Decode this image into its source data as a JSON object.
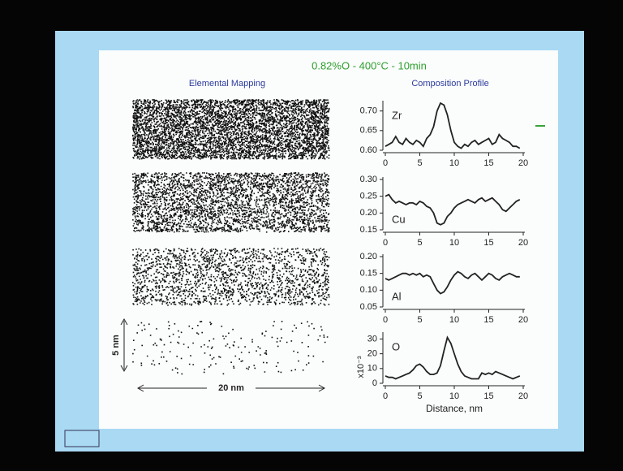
{
  "slide": {
    "title": "0.82%O - 400°C - 10min",
    "left_heading": "Elemental Mapping",
    "right_heading": "Composition Profile",
    "scale_vertical": "5 nm",
    "scale_horizontal": "20 nm"
  },
  "chart_data": [
    {
      "type": "line",
      "x": [
        0,
        0.5,
        1,
        1.5,
        2,
        2.5,
        3,
        3.5,
        4,
        4.5,
        5,
        5.5,
        6,
        6.5,
        7,
        7.5,
        8,
        8.5,
        9,
        9.5,
        10,
        10.5,
        11,
        11.5,
        12,
        12.5,
        13,
        13.5,
        14,
        14.5,
        15,
        15.5,
        16,
        16.5,
        17,
        17.5,
        18,
        18.5,
        19,
        19.5
      ],
      "series": [
        {
          "name": "Zr",
          "color": "#222222",
          "values": [
            0.61,
            0.615,
            0.62,
            0.635,
            0.62,
            0.615,
            0.63,
            0.62,
            0.615,
            0.625,
            0.62,
            0.61,
            0.63,
            0.64,
            0.66,
            0.7,
            0.72,
            0.715,
            0.69,
            0.65,
            0.62,
            0.61,
            0.605,
            0.615,
            0.61,
            0.62,
            0.625,
            0.615,
            0.62,
            0.625,
            0.63,
            0.615,
            0.62,
            0.64,
            0.63,
            0.625,
            0.62,
            0.61,
            0.61,
            0.605
          ]
        }
      ],
      "xlim": [
        0,
        20
      ],
      "xticks": [
        0,
        5,
        10,
        15,
        20
      ],
      "ylim": [
        0.6,
        0.72
      ],
      "yticks": [
        {
          "value": 0.6,
          "label": "0.60"
        },
        {
          "value": 0.65,
          "label": "0.65"
        },
        {
          "value": 0.7,
          "label": "0.70"
        }
      ]
    },
    {
      "type": "line",
      "x": [
        0,
        0.5,
        1,
        1.5,
        2,
        2.5,
        3,
        3.5,
        4,
        4.5,
        5,
        5.5,
        6,
        6.5,
        7,
        7.5,
        8,
        8.5,
        9,
        9.5,
        10,
        10.5,
        11,
        11.5,
        12,
        12.5,
        13,
        13.5,
        14,
        14.5,
        15,
        15.5,
        16,
        16.5,
        17,
        17.5,
        18,
        18.5,
        19,
        19.5
      ],
      "series": [
        {
          "name": "Cu",
          "color": "#222222",
          "values": [
            0.25,
            0.255,
            0.24,
            0.23,
            0.235,
            0.23,
            0.225,
            0.23,
            0.23,
            0.225,
            0.235,
            0.23,
            0.22,
            0.215,
            0.2,
            0.17,
            0.165,
            0.17,
            0.19,
            0.2,
            0.215,
            0.225,
            0.23,
            0.235,
            0.24,
            0.235,
            0.23,
            0.24,
            0.245,
            0.235,
            0.24,
            0.245,
            0.235,
            0.225,
            0.21,
            0.205,
            0.215,
            0.225,
            0.235,
            0.24
          ]
        }
      ],
      "xlim": [
        0,
        20
      ],
      "xticks": [
        0,
        5,
        10,
        15,
        20
      ],
      "ylim": [
        0.15,
        0.3
      ],
      "yticks": [
        {
          "value": 0.15,
          "label": "0.15"
        },
        {
          "value": 0.2,
          "label": "0.20"
        },
        {
          "value": 0.25,
          "label": "0.25"
        },
        {
          "value": 0.3,
          "label": "0.30"
        }
      ]
    },
    {
      "type": "line",
      "x": [
        0,
        0.5,
        1,
        1.5,
        2,
        2.5,
        3,
        3.5,
        4,
        4.5,
        5,
        5.5,
        6,
        6.5,
        7,
        7.5,
        8,
        8.5,
        9,
        9.5,
        10,
        10.5,
        11,
        11.5,
        12,
        12.5,
        13,
        13.5,
        14,
        14.5,
        15,
        15.5,
        16,
        16.5,
        17,
        17.5,
        18,
        18.5,
        19,
        19.5
      ],
      "series": [
        {
          "name": "Al",
          "color": "#222222",
          "values": [
            0.135,
            0.13,
            0.135,
            0.14,
            0.145,
            0.15,
            0.15,
            0.145,
            0.15,
            0.145,
            0.15,
            0.14,
            0.145,
            0.14,
            0.12,
            0.1,
            0.09,
            0.095,
            0.11,
            0.13,
            0.145,
            0.155,
            0.15,
            0.14,
            0.135,
            0.145,
            0.15,
            0.14,
            0.13,
            0.14,
            0.15,
            0.145,
            0.135,
            0.13,
            0.14,
            0.145,
            0.15,
            0.145,
            0.14,
            0.14
          ]
        }
      ],
      "xlim": [
        0,
        20
      ],
      "xticks": [
        0,
        5,
        10,
        15,
        20
      ],
      "ylim": [
        0.05,
        0.2
      ],
      "yticks": [
        {
          "value": 0.05,
          "label": "0.05"
        },
        {
          "value": 0.1,
          "label": "0.10"
        },
        {
          "value": 0.15,
          "label": "0.15"
        },
        {
          "value": 0.2,
          "label": "0.20"
        }
      ]
    },
    {
      "type": "line",
      "x": [
        0,
        0.5,
        1,
        1.5,
        2,
        2.5,
        3,
        3.5,
        4,
        4.5,
        5,
        5.5,
        6,
        6.5,
        7,
        7.5,
        8,
        8.5,
        9,
        9.5,
        10,
        10.5,
        11,
        11.5,
        12,
        12.5,
        13,
        13.5,
        14,
        14.5,
        15,
        15.5,
        16,
        16.5,
        17,
        17.5,
        18,
        18.5,
        19,
        19.5
      ],
      "series": [
        {
          "name": "O",
          "color": "#222222",
          "values": [
            5,
            4,
            4,
            3,
            4,
            5,
            6,
            7,
            9,
            12,
            13,
            11,
            8,
            6,
            6,
            7,
            12,
            22,
            31,
            27,
            20,
            13,
            8,
            5,
            4,
            3,
            3,
            3,
            7,
            6,
            7,
            6,
            8,
            7,
            6,
            5,
            4,
            3,
            4,
            5
          ]
        }
      ],
      "xlim": [
        0,
        20
      ],
      "xticks": [
        0,
        5,
        10,
        15,
        20
      ],
      "ylim": [
        0,
        33
      ],
      "yticks": [
        0,
        10,
        20,
        30
      ],
      "xlabel": "Distance, nm",
      "ylabel": "x10⁻³"
    }
  ]
}
